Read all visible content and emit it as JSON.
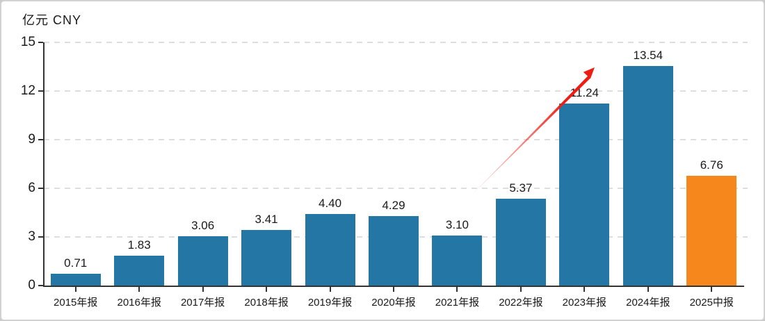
{
  "chart_data": {
    "type": "bar",
    "title": "亿元 CNY",
    "categories": [
      "2015年报",
      "2016年报",
      "2017年报",
      "2018年报",
      "2019年报",
      "2020年报",
      "2021年报",
      "2022年报",
      "2023年报",
      "2024年报",
      "2025中报"
    ],
    "values": [
      0.71,
      1.83,
      3.06,
      3.41,
      4.4,
      4.29,
      3.1,
      5.37,
      11.24,
      13.54,
      6.76
    ],
    "value_labels": [
      "0.71",
      "1.83",
      "3.06",
      "3.41",
      "4.40",
      "4.29",
      "3.10",
      "5.37",
      "11.24",
      "13.54",
      "6.76"
    ],
    "xlabel": "",
    "ylabel": "亿元 CNY",
    "ylim": [
      0,
      15
    ],
    "yticks": [
      0,
      3,
      6,
      9,
      12,
      15
    ],
    "grid": "horizontal-dashed",
    "legend": "none",
    "bar_color": "#2476a4",
    "highlight_color": "#f6871d",
    "highlight_index": 10,
    "axis_color": "#333333",
    "gridline_color": "#dedede",
    "label_color": "#1a1a1a",
    "annotations": [
      {
        "type": "arrow",
        "color": "#ee1d14",
        "description": "red growth arrow rising from above 2021年报 bar toward top of 2023年报 bar",
        "from_x": 672,
        "from_y": 287,
        "to_x": 855,
        "to_y": 97
      }
    ]
  }
}
